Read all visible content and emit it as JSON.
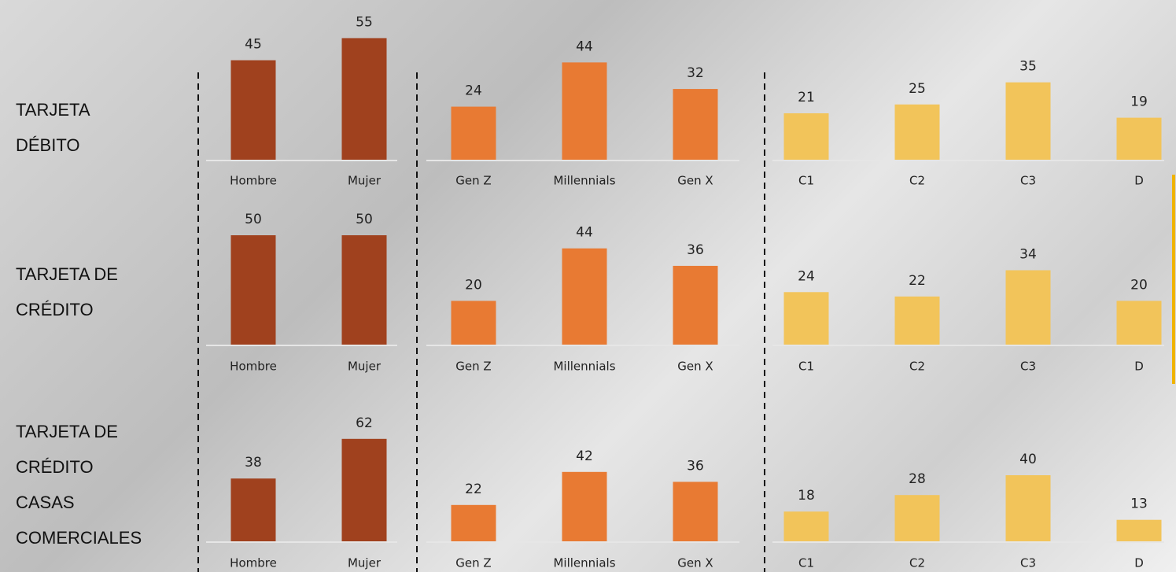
{
  "row_labels": [
    [
      "TARJETA",
      "DÉBITO"
    ],
    [
      "TARJETA DE",
      "CRÉDITO"
    ],
    [
      "TARJETA DE",
      "CRÉDITO",
      "CASAS",
      "COMERCIALES"
    ]
  ],
  "chart_data": [
    {
      "type": "bar",
      "categories": [
        "Hombre",
        "Mujer"
      ],
      "values": [
        45,
        55
      ],
      "color": "#a0411e"
    },
    {
      "type": "bar",
      "categories": [
        "Gen Z",
        "Millennials",
        "Gen X"
      ],
      "values": [
        24,
        44,
        32
      ],
      "color": "#e87a33"
    },
    {
      "type": "bar",
      "categories": [
        "C1",
        "C2",
        "C3",
        "D"
      ],
      "values": [
        21,
        25,
        35,
        19
      ],
      "color": "#f2c45a"
    },
    {
      "type": "bar",
      "categories": [
        "Hombre",
        "Mujer"
      ],
      "values": [
        50,
        50
      ],
      "color": "#a0411e"
    },
    {
      "type": "bar",
      "categories": [
        "Gen Z",
        "Millennials",
        "Gen X"
      ],
      "values": [
        20,
        44,
        36
      ],
      "color": "#e87a33"
    },
    {
      "type": "bar",
      "categories": [
        "C1",
        "C2",
        "C3",
        "D"
      ],
      "values": [
        24,
        22,
        34,
        20
      ],
      "color": "#f2c45a"
    },
    {
      "type": "bar",
      "categories": [
        "Hombre",
        "Mujer"
      ],
      "values": [
        38,
        62
      ],
      "color": "#a0411e"
    },
    {
      "type": "bar",
      "categories": [
        "Gen Z",
        "Millennials",
        "Gen X"
      ],
      "values": [
        22,
        42,
        36
      ],
      "color": "#e87a33"
    },
    {
      "type": "bar",
      "categories": [
        "C1",
        "C2",
        "C3",
        "D"
      ],
      "values": [
        18,
        28,
        40,
        13
      ],
      "color": "#f2c45a"
    }
  ]
}
